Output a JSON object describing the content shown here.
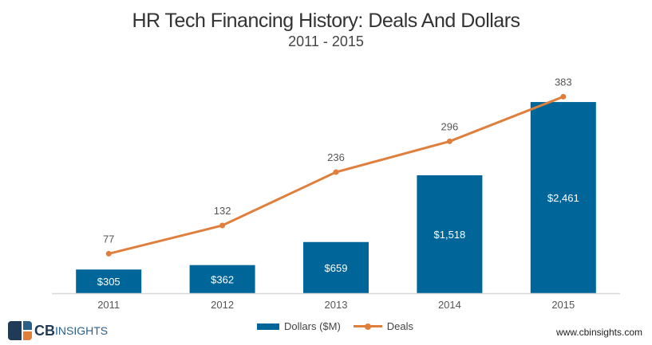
{
  "chart_data": {
    "type": "bar+line",
    "title": "HR Tech Financing History: Deals And Dollars",
    "subtitle": "2011 - 2015",
    "categories": [
      "2011",
      "2012",
      "2013",
      "2014",
      "2015"
    ],
    "series": [
      {
        "name": "Dollars ($M)",
        "type": "bar",
        "values": [
          305,
          362,
          659,
          1518,
          2461
        ],
        "labels": [
          "$305",
          "$362",
          "$659",
          "$1,518",
          "$2,461"
        ],
        "color": "#006699",
        "ylim": [
          0,
          2800
        ]
      },
      {
        "name": "Deals",
        "type": "line",
        "values": [
          77,
          132,
          236,
          296,
          383
        ],
        "labels": [
          "77",
          "132",
          "236",
          "296",
          "383"
        ],
        "color": "#E07F3C",
        "ylim": [
          0,
          424
        ]
      }
    ],
    "grid": false,
    "legend": "bottom"
  },
  "branding": {
    "logo_text_bold": "CB",
    "logo_text": "INSIGHTS",
    "url": "www.cbinsights.com"
  }
}
